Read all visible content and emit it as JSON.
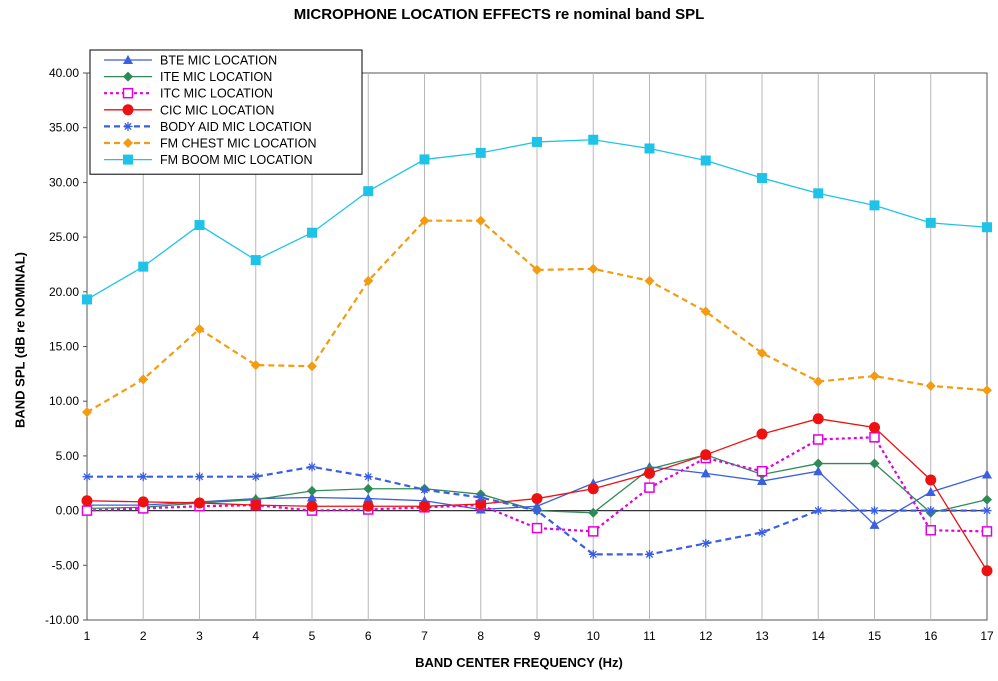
{
  "chart_data": {
    "type": "line",
    "title": "MICROPHONE LOCATION EFFECTS re nominal band SPL",
    "xlabel": "BAND CENTER FREQUENCY (Hz)",
    "ylabel": "BAND SPL (dB re NOMINAL)",
    "x": [
      1,
      2,
      3,
      4,
      5,
      6,
      7,
      8,
      9,
      10,
      11,
      12,
      13,
      14,
      15,
      16,
      17
    ],
    "xlim": [
      1,
      17
    ],
    "ylim": [
      -10,
      40
    ],
    "y_ticks": [
      "-10.00",
      "-5.00",
      "0.00",
      "5.00",
      "10.00",
      "15.00",
      "20.00",
      "25.00",
      "30.00",
      "35.00",
      "40.00"
    ],
    "x_ticks": [
      "1",
      "2",
      "3",
      "4",
      "5",
      "6",
      "7",
      "8",
      "9",
      "10",
      "11",
      "12",
      "13",
      "14",
      "15",
      "16",
      "17"
    ],
    "grid": "vertical",
    "legend_position": "top-left",
    "series": [
      {
        "name": "BTE MIC LOCATION",
        "color": "#3a5fe0",
        "dash": "solid",
        "marker": "triangle",
        "values": [
          0.5,
          0.5,
          0.8,
          1.1,
          1.2,
          1.1,
          0.9,
          0.1,
          0.4,
          2.5,
          4.0,
          3.4,
          2.7,
          3.6,
          -1.3,
          1.7,
          3.3
        ]
      },
      {
        "name": "ITE MIC LOCATION",
        "color": "#2e8b57",
        "dash": "solid",
        "marker": "diamond",
        "values": [
          0.2,
          0.3,
          0.7,
          1.0,
          1.8,
          2.0,
          2.0,
          1.5,
          0.0,
          -0.2,
          3.8,
          5.1,
          3.3,
          4.3,
          4.3,
          -0.2,
          1.0
        ]
      },
      {
        "name": "ITC MIC LOCATION",
        "color": "#e100e1",
        "dash": "dot",
        "marker": "square-open",
        "values": [
          0.0,
          0.2,
          0.4,
          0.5,
          0.0,
          0.1,
          0.3,
          0.5,
          -1.6,
          -1.9,
          2.1,
          4.8,
          3.6,
          6.5,
          6.7,
          -1.8,
          -1.9
        ]
      },
      {
        "name": "CIC MIC LOCATION",
        "color": "#ee1111",
        "dash": "solid",
        "marker": "circle",
        "values": [
          0.9,
          0.8,
          0.7,
          0.5,
          0.4,
          0.4,
          0.4,
          0.6,
          1.1,
          2.0,
          3.4,
          5.1,
          7.0,
          8.4,
          7.6,
          2.8,
          -5.5
        ]
      },
      {
        "name": "BODY AID MIC LOCATION",
        "color": "#3a5fe0",
        "dash": "dash",
        "marker": "star",
        "values": [
          3.1,
          3.1,
          3.1,
          3.1,
          4.0,
          3.1,
          1.9,
          1.2,
          0.0,
          -4.0,
          -4.0,
          -3.0,
          -2.0,
          0.0,
          0.0,
          0.0,
          0.0
        ]
      },
      {
        "name": "FM CHEST MIC LOCATION",
        "color": "#f39c12",
        "dash": "dash",
        "marker": "diamond",
        "values": [
          9.0,
          12.0,
          16.6,
          13.3,
          13.2,
          21.0,
          26.5,
          26.5,
          22.0,
          22.1,
          21.0,
          18.2,
          14.4,
          11.8,
          12.3,
          11.4,
          11.0
        ]
      },
      {
        "name": "FM BOOM MIC LOCATION",
        "color": "#1ec4e8",
        "dash": "solid",
        "marker": "square",
        "values": [
          19.3,
          22.3,
          26.1,
          22.9,
          25.4,
          29.2,
          32.1,
          32.7,
          33.7,
          33.9,
          33.1,
          32.0,
          30.4,
          29.0,
          27.9,
          26.3,
          25.9
        ]
      }
    ]
  }
}
